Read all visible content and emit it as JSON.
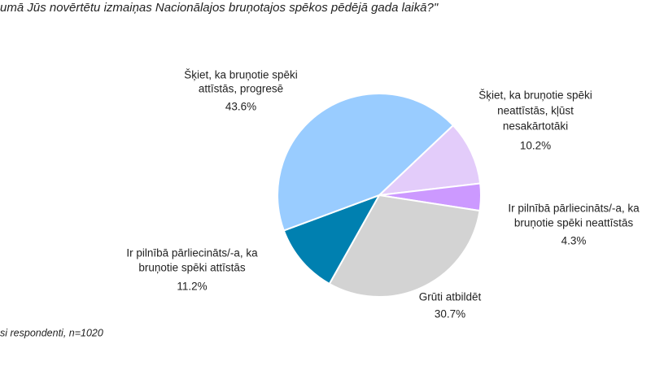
{
  "chart_data": {
    "type": "pie",
    "title": "umā Jūs novērtētu izmaiņas Nacionālajos bruņotajos spēkos pēdējā gada laikā?\"",
    "note": "si respondenti, n=1020",
    "categories": [
      [
        "Šķiet, ka bruņotie spēki",
        "neattīstās, kļūst",
        "nesakārtotāki"
      ],
      [
        "Ir pilnībā pārliecināts/-a, ka",
        "bruņotie spēki neattīstās"
      ],
      [
        "Grūti atbildēt"
      ],
      [
        "Ir pilnībā pārliecināts/-a, ka",
        "bruņotie spēki attīstās"
      ],
      [
        "Šķiet, ka bruņotie spēki",
        "attīstās, progresē"
      ]
    ],
    "values": [
      10.2,
      4.3,
      30.7,
      11.2,
      43.6
    ],
    "value_labels": [
      "10.2%",
      "4.3%",
      "30.7%",
      "11.2%",
      "43.6%"
    ],
    "colors": [
      "#e3ccfa",
      "#cc99ff",
      "#d3d3d3",
      "#0080b0",
      "#99ccff"
    ]
  }
}
